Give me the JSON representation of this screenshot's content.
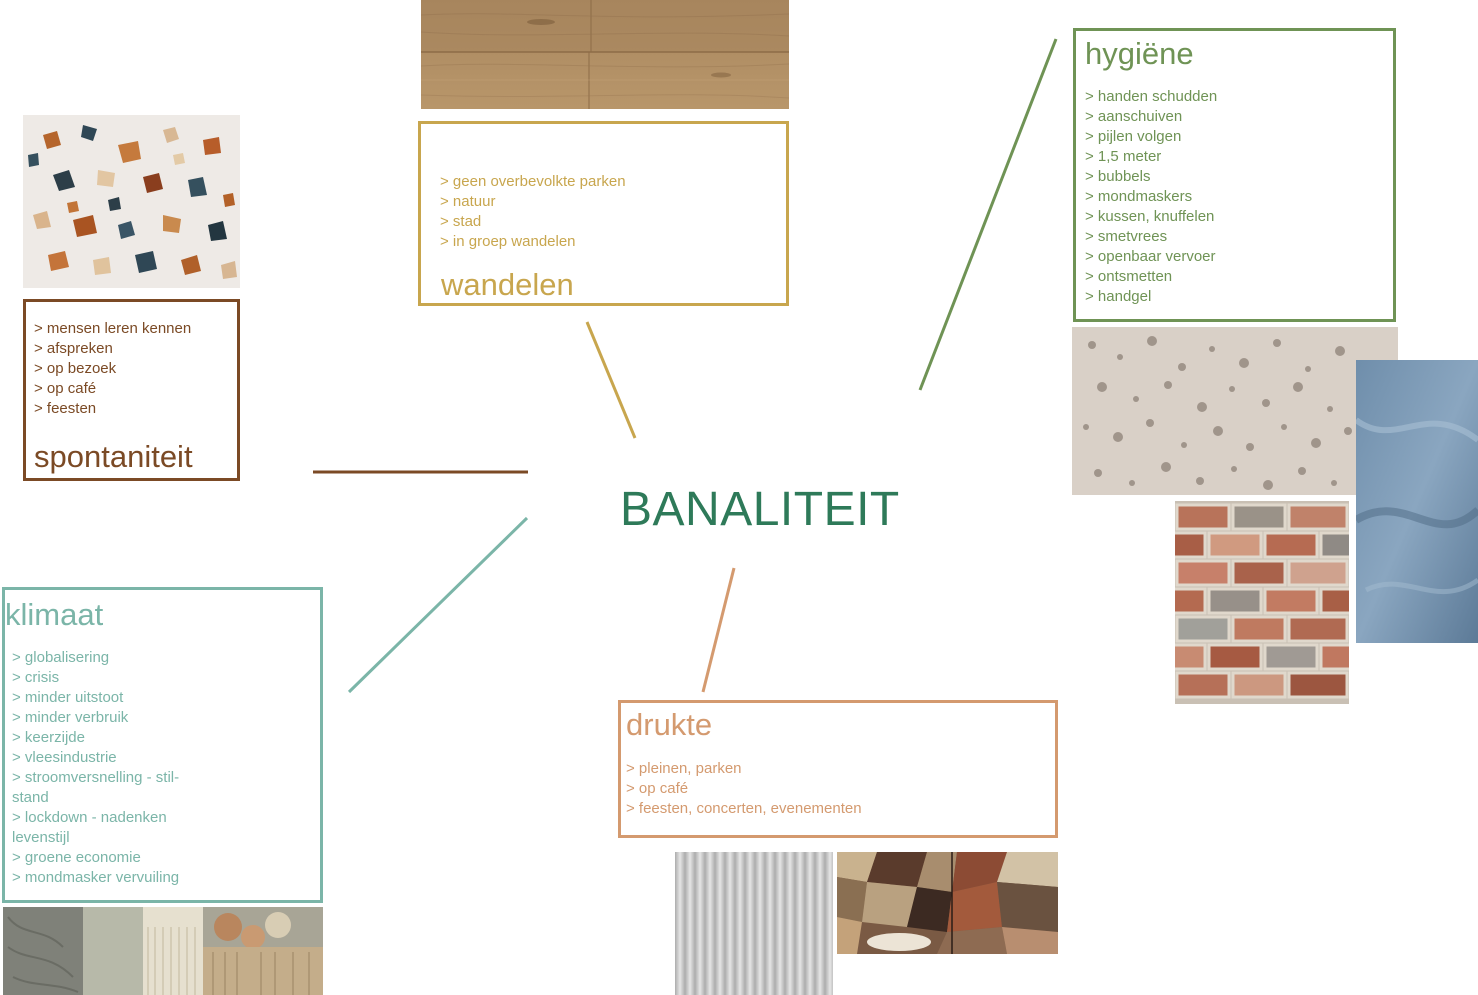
{
  "center": {
    "title": "BANALITEIT",
    "color": "#2e7a59"
  },
  "colors": {
    "spontaniteit": "#7b4a25",
    "wandelen": "#c8a64e",
    "hygiene": "#6f9355",
    "klimaat": "#7bb5a8",
    "drukte": "#d49a6f"
  },
  "spontaniteit": {
    "title": "spontaniteit",
    "items": [
      "> mensen leren kennen",
      "> afspreken",
      "> op bezoek",
      "> op café",
      "> feesten"
    ]
  },
  "wandelen": {
    "title": "wandelen",
    "items": [
      "> geen overbevolkte parken",
      "> natuur",
      "> stad",
      "> in groep wandelen"
    ]
  },
  "hygiene": {
    "title": "hygiëne",
    "items": [
      "> handen schudden",
      "> aanschuiven",
      "> pijlen volgen",
      "> 1,5 meter",
      "> bubbels",
      "> mondmaskers",
      "> kussen, knuffelen",
      "> smetvrees",
      "> openbaar vervoer",
      "> ontsmetten",
      "> handgel"
    ]
  },
  "klimaat": {
    "title": "klimaat",
    "items": [
      "> globalisering",
      "> crisis",
      "> minder uitstoot",
      "> minder verbruik",
      "> keerzijde",
      "> vleesindustrie",
      "> stroomversnelling - stil-",
      "stand",
      "> lockdown - nadenken",
      "levenstijl",
      "> groene economie",
      "> mondmasker vervuiling"
    ]
  },
  "drukte": {
    "title": "drukte",
    "items": [
      "> pleinen, parken",
      "> op café",
      "> feesten, concerten, evenementen"
    ]
  },
  "textures": [
    "terrazzo",
    "wood",
    "foam",
    "plastic",
    "brick",
    "yarn",
    "corrugated-metal",
    "stone-mosaic"
  ]
}
